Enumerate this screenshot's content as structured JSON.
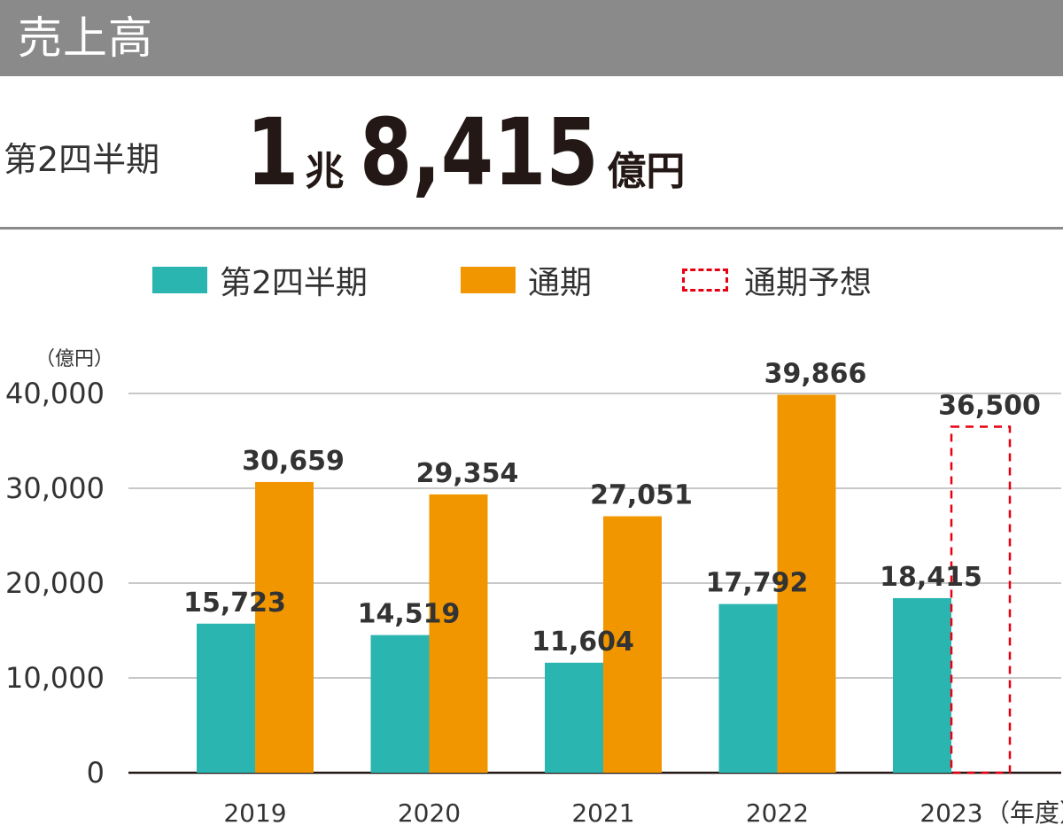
{
  "header": {
    "title": "売上高"
  },
  "summary": {
    "label": "第2四半期",
    "value_cho": "1",
    "unit_cho": "兆",
    "value_oku": "8,415",
    "unit_oku": "億円"
  },
  "colors": {
    "q2": "#2bb5b0",
    "full_year": "#f29600",
    "forecast": "#e60012",
    "header": "#8a8a8a"
  },
  "chart_data": {
    "type": "bar",
    "title": "",
    "ylabel": "（億円）",
    "xlabel": "（年度）",
    "ylim": [
      0,
      40000
    ],
    "yticks": [
      0,
      10000,
      20000,
      30000,
      40000
    ],
    "ytick_labels": [
      "0",
      "10,000",
      "20,000",
      "30,000",
      "40,000"
    ],
    "grid": true,
    "legend_position": "top",
    "categories": [
      "2019",
      "2020",
      "2021",
      "2022",
      "2023"
    ],
    "series": [
      {
        "name": "第2四半期",
        "values": [
          15723,
          14519,
          11604,
          17792,
          18415
        ],
        "labels": [
          "15,723",
          "14,519",
          "11,604",
          "17,792",
          "18,415"
        ],
        "style": "solid",
        "color": "#2bb5b0"
      },
      {
        "name": "通期",
        "values": [
          30659,
          29354,
          27051,
          39866,
          null
        ],
        "labels": [
          "30,659",
          "29,354",
          "27,051",
          "39,866",
          ""
        ],
        "style": "solid",
        "color": "#f29600"
      },
      {
        "name": "通期予想",
        "values": [
          null,
          null,
          null,
          null,
          36500
        ],
        "labels": [
          "",
          "",
          "",
          "",
          "36,500"
        ],
        "style": "dashed",
        "color": "#e60012"
      }
    ]
  }
}
